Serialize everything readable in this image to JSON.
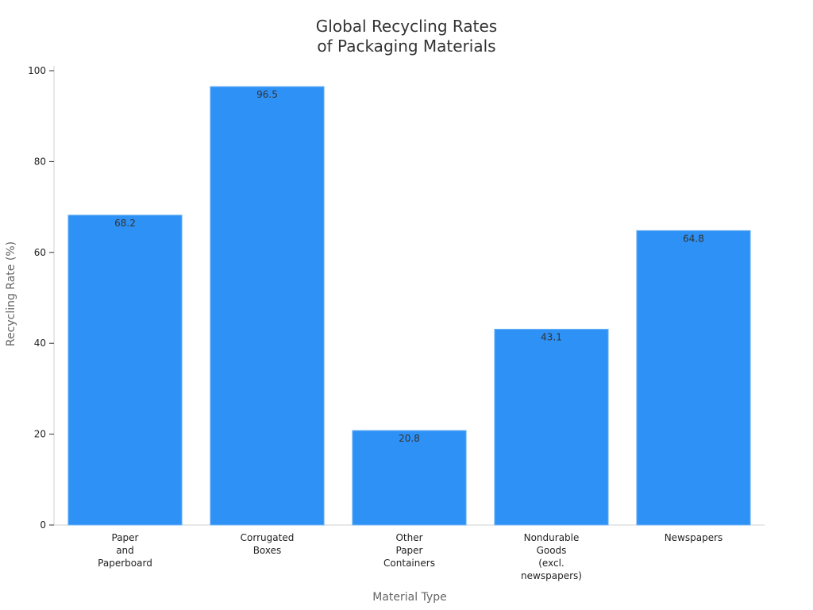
{
  "chart_data": {
    "type": "bar",
    "title": "Global Recycling Rates\nof Packaging Materials",
    "xlabel": "Material Type",
    "ylabel": "Recycling Rate (%)",
    "categories": [
      "Paper\nand\nPaperboard",
      "Corrugated\nBoxes",
      "Other\nPaper\nContainers",
      "Nondurable\nGoods\n(excl.\nnewspapers)",
      "Newspapers"
    ],
    "values": [
      68.2,
      96.5,
      20.8,
      43.1,
      64.8
    ],
    "color": "#2e91f5",
    "ylim": [
      0,
      100
    ],
    "yticks": [
      0,
      20,
      40,
      60,
      80,
      100
    ],
    "grid": false
  }
}
